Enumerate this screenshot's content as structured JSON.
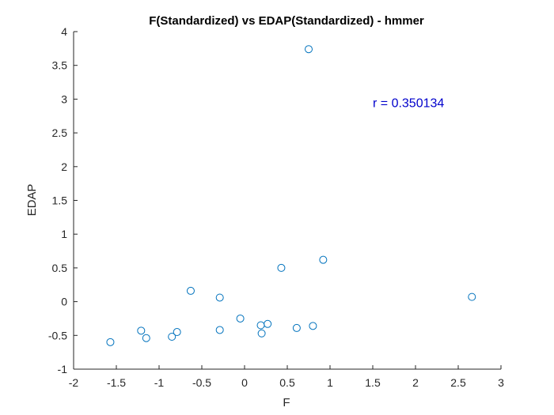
{
  "chart_data": {
    "type": "scatter",
    "title": "F(Standardized) vs EDAP(Standardized) - hmmer",
    "xlabel": "F",
    "ylabel": "EDAP",
    "xlim": [
      -2,
      3
    ],
    "ylim": [
      -1,
      4
    ],
    "x_ticks": [
      -2,
      -1.5,
      -1,
      -0.5,
      0,
      0.5,
      1,
      1.5,
      2,
      2.5,
      3
    ],
    "x_tick_labels": [
      "-2",
      "-1.5",
      "-1",
      "-0.5",
      "0",
      "0.5",
      "1",
      "1.5",
      "2",
      "2.5",
      "3"
    ],
    "y_ticks": [
      -1,
      -0.5,
      0,
      0.5,
      1,
      1.5,
      2,
      2.5,
      3,
      3.5,
      4
    ],
    "y_tick_labels": [
      "-1",
      "-0.5",
      "0",
      "0.5",
      "1",
      "1.5",
      "2",
      "2.5",
      "3",
      "3.5",
      "4"
    ],
    "grid": false,
    "marker": "circle",
    "marker_color": "#0072BD",
    "annotation": {
      "text": "r = 0.350134",
      "x": 1.5,
      "y": 2.95,
      "color": "#0000CC"
    },
    "points": [
      {
        "x": -1.57,
        "y": -0.6
      },
      {
        "x": -1.21,
        "y": -0.43
      },
      {
        "x": -1.15,
        "y": -0.54
      },
      {
        "x": -0.85,
        "y": -0.52
      },
      {
        "x": -0.79,
        "y": -0.45
      },
      {
        "x": -0.63,
        "y": 0.16
      },
      {
        "x": -0.29,
        "y": 0.06
      },
      {
        "x": -0.29,
        "y": -0.42
      },
      {
        "x": -0.05,
        "y": -0.25
      },
      {
        "x": 0.19,
        "y": -0.35
      },
      {
        "x": 0.2,
        "y": -0.47
      },
      {
        "x": 0.27,
        "y": -0.33
      },
      {
        "x": 0.43,
        "y": 0.5
      },
      {
        "x": 0.61,
        "y": -0.39
      },
      {
        "x": 0.75,
        "y": 3.74
      },
      {
        "x": 0.8,
        "y": -0.36
      },
      {
        "x": 0.92,
        "y": 0.62
      },
      {
        "x": 2.66,
        "y": 0.07
      }
    ]
  }
}
